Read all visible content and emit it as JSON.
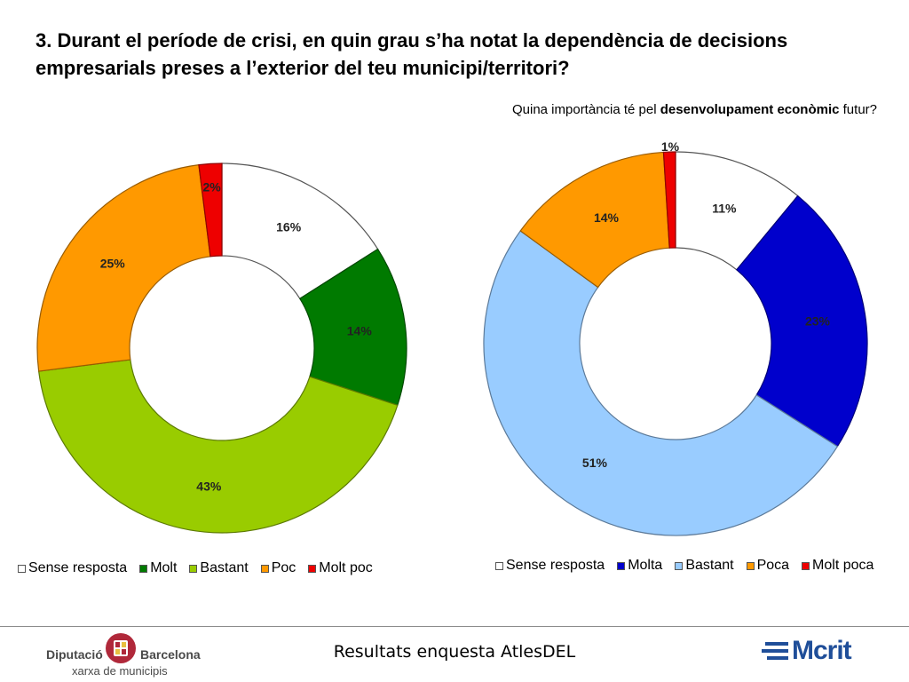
{
  "title": "3. Durant el període de crisi, en quin grau s’ha notat la dependència de decisions empresarials preses a l’exterior del teu municipi/territori?",
  "right_subtitle": {
    "before": "Quina importància té pel ",
    "bold": "desenvolupament econòmic",
    "after": " futur?"
  },
  "chart_data": [
    {
      "type": "pie",
      "donut": true,
      "categories": [
        "Sense resposta",
        "Molt",
        "Bastant",
        "Poc",
        "Molt poc"
      ],
      "values": [
        16,
        14,
        43,
        25,
        2
      ],
      "labels": [
        "16%",
        "14%",
        "43%",
        "25%",
        "2%"
      ],
      "colors": [
        "#ffffff",
        "#007a00",
        "#99cc00",
        "#ff9900",
        "#ee0000"
      ],
      "legend": "bottom"
    },
    {
      "type": "pie",
      "donut": true,
      "categories": [
        "Sense resposta",
        "Molta",
        "Bastant",
        "Poca",
        "Molt poca"
      ],
      "values": [
        11,
        23,
        51,
        14,
        1
      ],
      "labels": [
        "11%",
        "23%",
        "51%",
        "14%",
        "1%"
      ],
      "colors": [
        "#ffffff",
        "#0000cc",
        "#99ccff",
        "#ff9900",
        "#ee0000"
      ],
      "legend": "bottom"
    }
  ],
  "footer": {
    "center_text": "Resultats enquesta AtlesDEL",
    "logo_left": {
      "word1": "Diputació",
      "word2": "Barcelona",
      "sub": "xarxa de municipis"
    },
    "logo_right": {
      "text": "Mcrit"
    }
  }
}
